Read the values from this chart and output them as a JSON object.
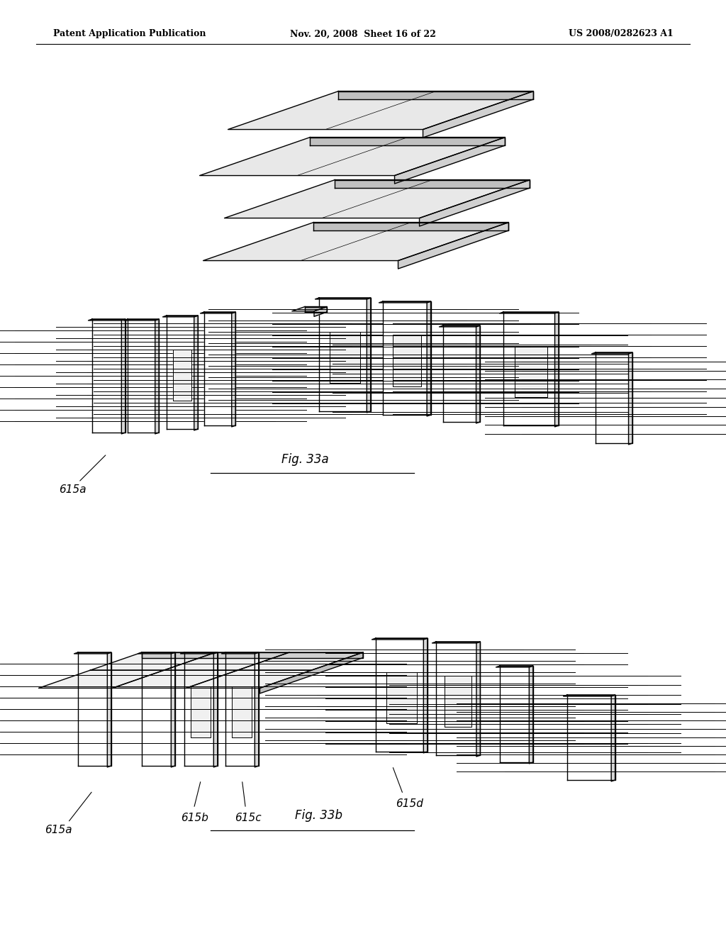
{
  "background_color": "#ffffff",
  "header_left": "Patent Application Publication",
  "header_center": "Nov. 20, 2008  Sheet 16 of 22",
  "header_right": "US 2008/0282623 A1",
  "fig_label_top": "Fig. 33a",
  "fig_label_bottom": "Fig. 33b",
  "label_615a_top": "615a",
  "label_615a_bottom": "615a",
  "label_615b": "615b",
  "label_615c": "615c",
  "label_615d": "615d",
  "lw": 1.0,
  "notch_lw": 0.7
}
